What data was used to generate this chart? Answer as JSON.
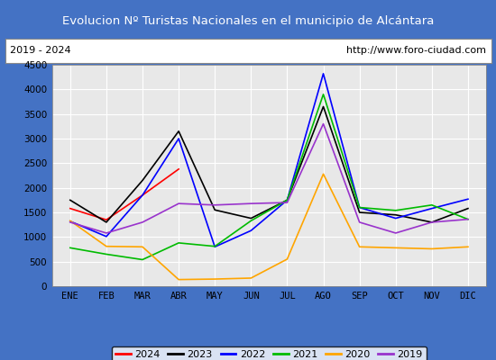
{
  "title": "Evolucion Nº Turistas Nacionales en el municipio de Alcántara",
  "subtitle_left": "2019 - 2024",
  "subtitle_right": "http://www.foro-ciudad.com",
  "title_bg": "#4472c4",
  "title_color": "white",
  "chart_bg": "#e8e8e8",
  "months": [
    "ENE",
    "FEB",
    "MAR",
    "ABR",
    "MAY",
    "JUN",
    "JUL",
    "AGO",
    "SEP",
    "OCT",
    "NOV",
    "DIC"
  ],
  "ylim": [
    0,
    4500
  ],
  "yticks": [
    0,
    500,
    1000,
    1500,
    2000,
    2500,
    3000,
    3500,
    4000,
    4500
  ],
  "series": {
    "2024": {
      "color": "#ff0000",
      "data": [
        1580,
        1350,
        1850,
        2380,
        null,
        null,
        null,
        null,
        null,
        null,
        null,
        null
      ]
    },
    "2023": {
      "color": "#000000",
      "data": [
        1750,
        1300,
        2150,
        3150,
        1550,
        1380,
        1750,
        3650,
        1500,
        1450,
        1300,
        1580
      ]
    },
    "2022": {
      "color": "#0000ff",
      "data": [
        1320,
        1010,
        1850,
        3000,
        800,
        1130,
        1750,
        4320,
        1600,
        1380,
        1580,
        1770
      ]
    },
    "2021": {
      "color": "#00bb00",
      "data": [
        780,
        650,
        540,
        880,
        810,
        1330,
        1750,
        3900,
        1600,
        1540,
        1650,
        1360
      ]
    },
    "2020": {
      "color": "#ffa500",
      "data": [
        1330,
        810,
        800,
        135,
        145,
        165,
        550,
        2280,
        800,
        780,
        760,
        800
      ]
    },
    "2019": {
      "color": "#9933cc",
      "data": [
        1300,
        1080,
        1300,
        1680,
        1650,
        1680,
        1700,
        3300,
        1300,
        1080,
        1300,
        1360
      ]
    }
  },
  "legend_order": [
    "2024",
    "2023",
    "2022",
    "2021",
    "2020",
    "2019"
  ]
}
